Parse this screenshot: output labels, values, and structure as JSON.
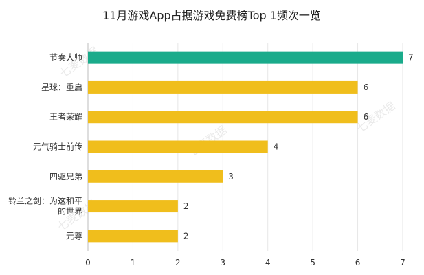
{
  "chart_data": {
    "type": "bar",
    "orientation": "horizontal",
    "title": "11月游戏App占据游戏免费榜Top 1频次一览",
    "categories": [
      "节奏大师",
      "星球：重启",
      "王者荣耀",
      "元气骑士前传",
      "四驱兄弟",
      "铃兰之剑：为这和平的世界",
      "元尊"
    ],
    "category_lines": [
      [
        "节奏大师"
      ],
      [
        "星球：重启"
      ],
      [
        "王者荣耀"
      ],
      [
        "元气骑士前传"
      ],
      [
        "四驱兄弟"
      ],
      [
        "铃兰之剑：为这和平",
        "的世界"
      ],
      [
        "元尊"
      ]
    ],
    "values": [
      7,
      6,
      6,
      4,
      3,
      2,
      2
    ],
    "bar_colors": [
      "#1aab8b",
      "#f0be1c",
      "#f0be1c",
      "#f0be1c",
      "#f0be1c",
      "#f0be1c",
      "#f0be1c"
    ],
    "xlim": [
      0,
      7
    ],
    "xticks": [
      "0",
      "1",
      "2",
      "3",
      "4",
      "5",
      "6",
      "7"
    ],
    "grid": true,
    "legend": "none",
    "watermark": "七麦数据",
    "xlabel": "",
    "ylabel": ""
  }
}
